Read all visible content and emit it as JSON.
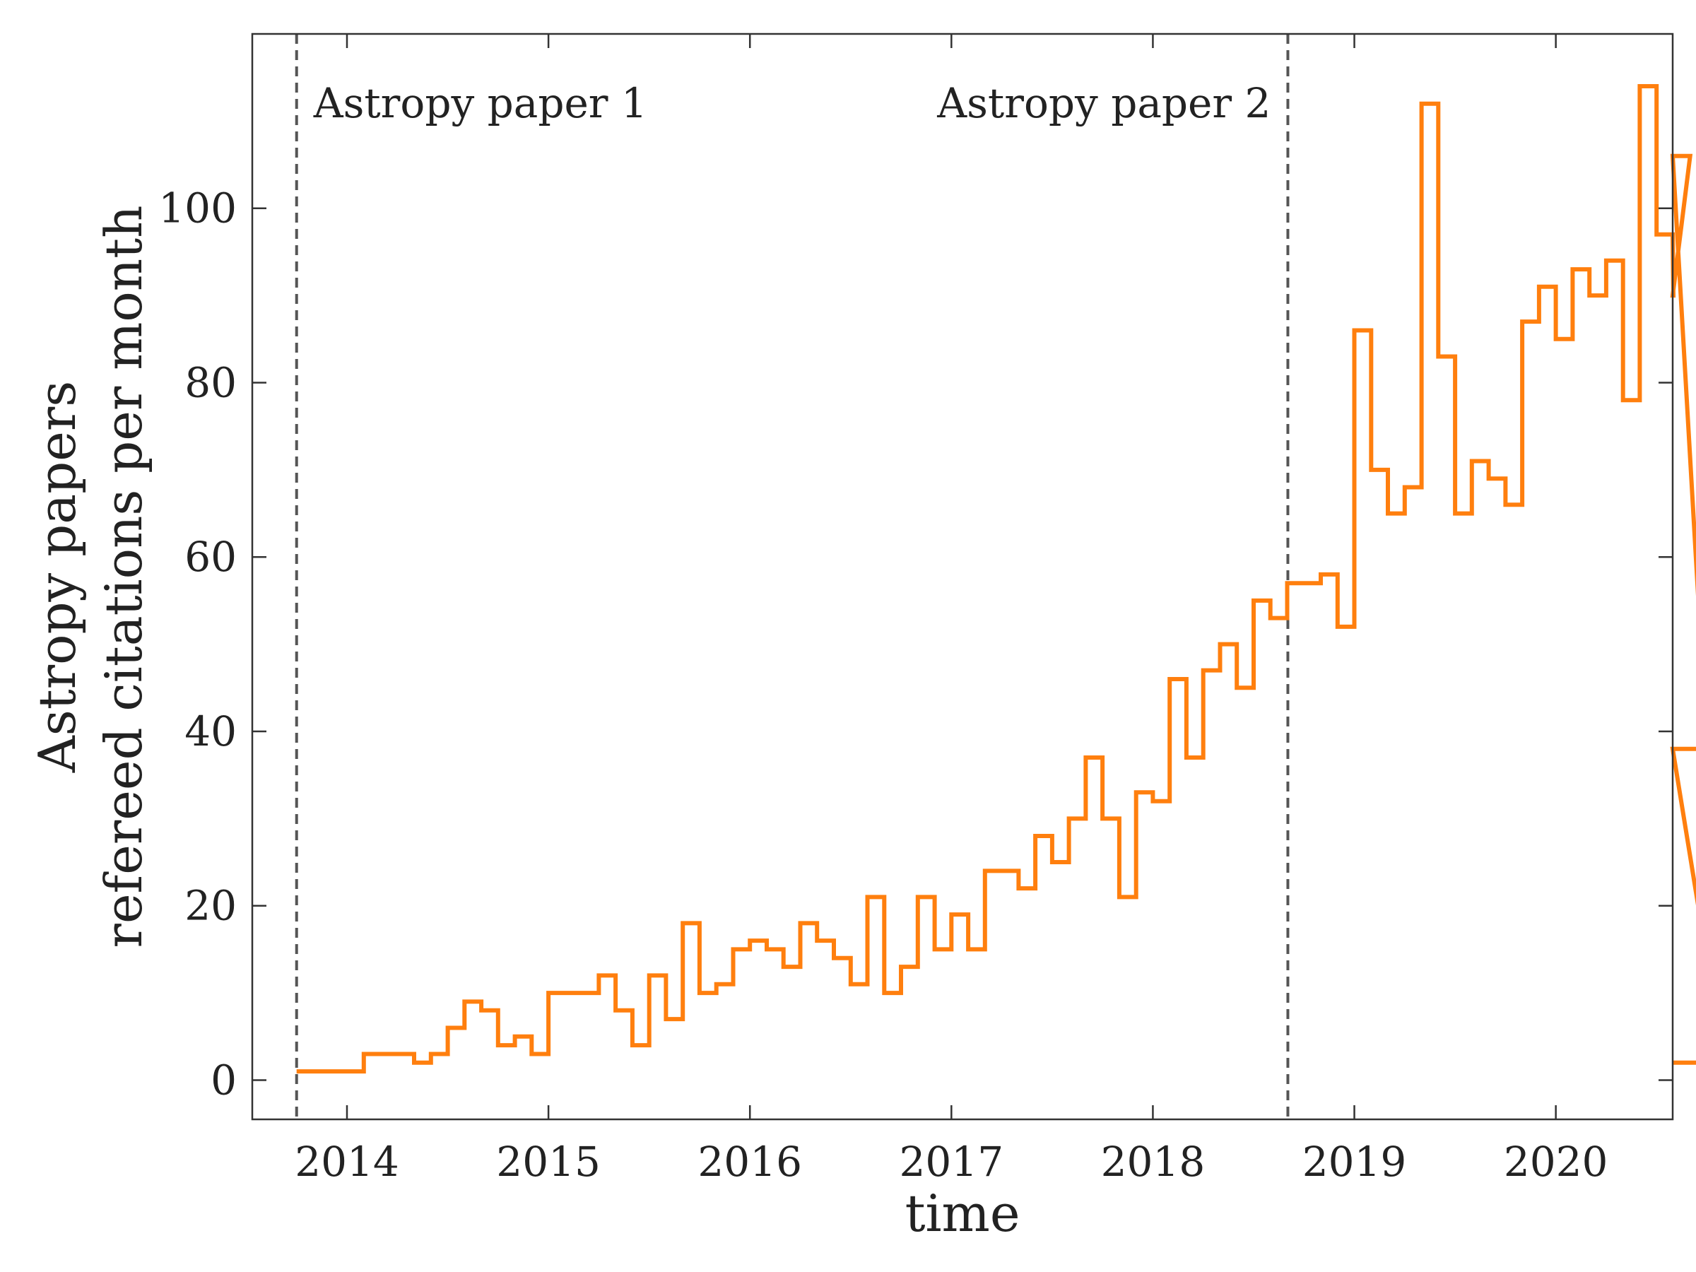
{
  "chart_data": {
    "type": "line",
    "step": "post",
    "xlabel": "time",
    "ylabel_lines": [
      "Astropy papers",
      "refereed citations per month"
    ],
    "xlim": [
      2013.53,
      2020.58
    ],
    "ylim": [
      -4.5,
      120
    ],
    "x_ticks": [
      {
        "value": 2014,
        "label": "2014"
      },
      {
        "value": 2015,
        "label": "2015"
      },
      {
        "value": 2016,
        "label": "2016"
      },
      {
        "value": 2017,
        "label": "2017"
      },
      {
        "value": 2018,
        "label": "2018"
      },
      {
        "value": 2019,
        "label": "2019"
      },
      {
        "value": 2020,
        "label": "2020"
      }
    ],
    "y_ticks": [
      {
        "value": 0,
        "label": "0"
      },
      {
        "value": 20,
        "label": "20"
      },
      {
        "value": 40,
        "label": "40"
      },
      {
        "value": 60,
        "label": "60"
      },
      {
        "value": 80,
        "label": "80"
      },
      {
        "value": 100,
        "label": "100"
      }
    ],
    "series": [
      {
        "name": "refereed citations per month",
        "color": "#ff7f0e",
        "start": 2013.75,
        "step": 0.08333333,
        "values": [
          1,
          1,
          1,
          1,
          3,
          3,
          3,
          2,
          3,
          6,
          9,
          8,
          4,
          5,
          3,
          10,
          10,
          10,
          12,
          8,
          4,
          12,
          7,
          18,
          10,
          11,
          15,
          16,
          15,
          13,
          18,
          16,
          14,
          11,
          21,
          10,
          13,
          21,
          15,
          19,
          15,
          24,
          24,
          22,
          28,
          25,
          30,
          37,
          30,
          21,
          33,
          32,
          46,
          37,
          47,
          50,
          45,
          55,
          53,
          57,
          57,
          58,
          52,
          86,
          70,
          65,
          68,
          112,
          83,
          65,
          71,
          69,
          66,
          87,
          91,
          85,
          93,
          90,
          94,
          78,
          114,
          97,
          90,
          106,
          38,
          2
        ]
      }
    ],
    "vlines": [
      {
        "x": 2013.75,
        "label": "Astropy paper 1",
        "color": "#555555"
      },
      {
        "x": 2018.67,
        "label": "Astropy paper 2",
        "color": "#555555"
      }
    ]
  }
}
